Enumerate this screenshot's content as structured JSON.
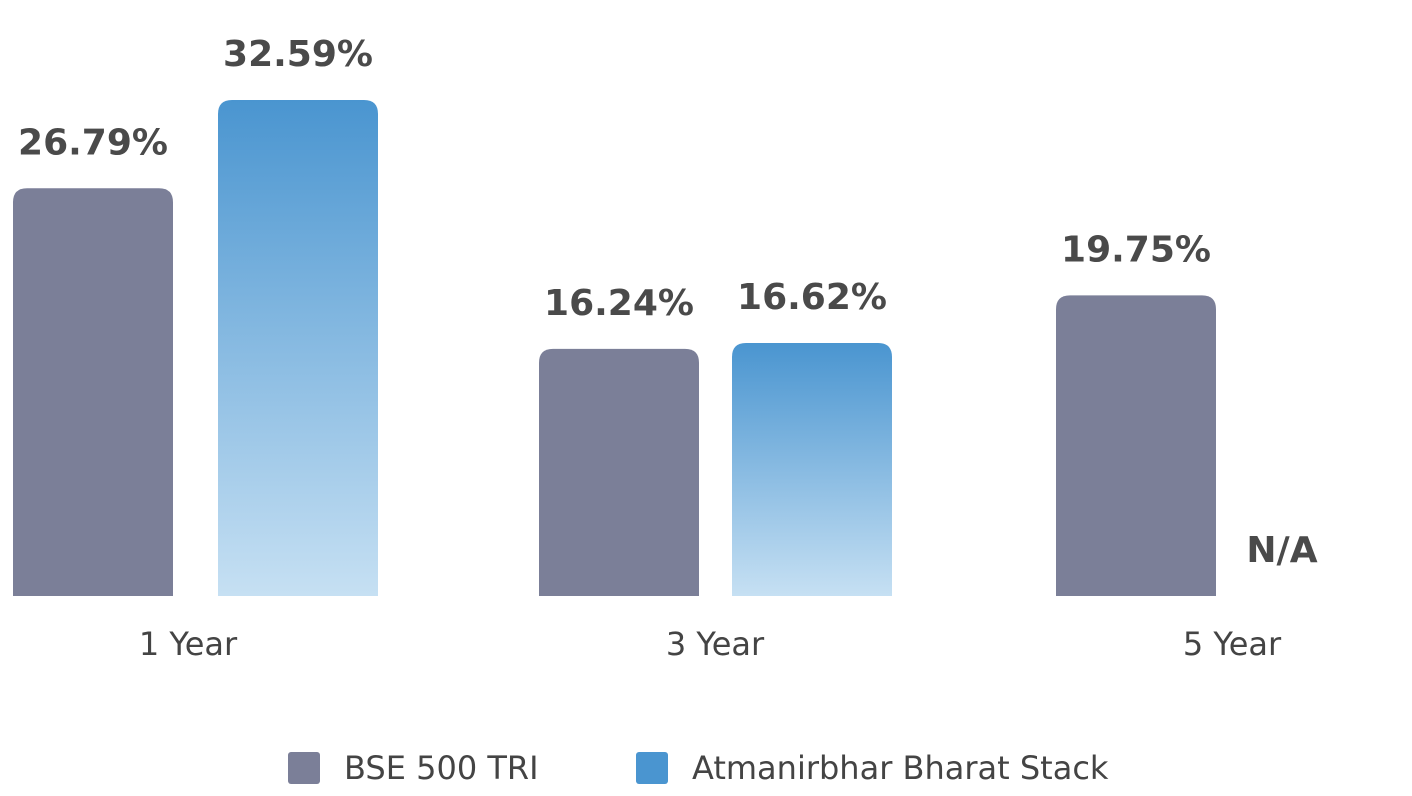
{
  "chart_data": {
    "type": "bar",
    "title": "",
    "xlabel": "",
    "ylabel": "",
    "ylim": [
      0,
      32.59
    ],
    "grid": false,
    "legend_position": "bottom",
    "categories": [
      "1 Year",
      "3 Year",
      "5 Year"
    ],
    "series": [
      {
        "name": "BSE 500 TRI",
        "color": "#7b7f98",
        "values": [
          26.79,
          16.24,
          19.75
        ],
        "labels": [
          "26.79%",
          "16.24%",
          "19.75%"
        ]
      },
      {
        "name": "Atmanirbhar Bharat Stack",
        "color": "#4a95d0",
        "color_light": "#c6e0f3",
        "values": [
          32.59,
          16.62,
          null
        ],
        "labels": [
          "32.59%",
          "16.62%",
          "N/A"
        ]
      }
    ]
  }
}
